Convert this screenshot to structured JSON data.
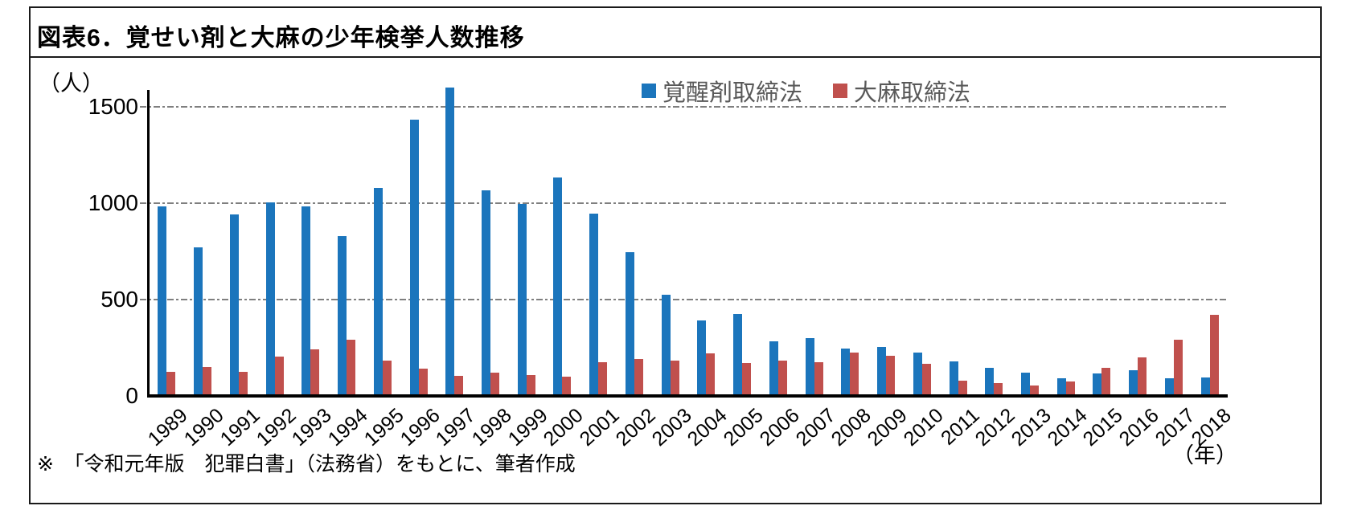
{
  "title": "図表6．覚せい剤と大麻の少年検挙人数推移",
  "y_axis_unit": "（人）",
  "x_axis_unit": "（年）",
  "footnote": "※　「令和元年版　犯罪白書」（法務省）をもとに、筆者作成",
  "colors": {
    "stimulant_blue": "#1b75bc",
    "cannabis_red": "#c0504d",
    "legend_text": "#595959",
    "gridline_gray": "#7f7f7f",
    "axis_black": "#000000"
  },
  "legend": [
    {
      "label": "覚醒剤取締法",
      "color": "#1b75bc"
    },
    {
      "label": "大麻取締法",
      "color": "#c0504d"
    }
  ],
  "chart_data": {
    "type": "bar",
    "title": "図表6．覚せい剤と大麻の少年検挙人数推移",
    "xlabel": "（年）",
    "ylabel": "（人）",
    "ylim": [
      0,
      1500
    ],
    "yticks": [
      0,
      500,
      1000,
      1500
    ],
    "grid": "horizontal dashed at 500/1000/1500",
    "legend_position": "top-center",
    "categories": [
      "1989",
      "1990",
      "1991",
      "1992",
      "1993",
      "1994",
      "1995",
      "1996",
      "1997",
      "1998",
      "1999",
      "2000",
      "2001",
      "2002",
      "2003",
      "2004",
      "2005",
      "2006",
      "2007",
      "2008",
      "2009",
      "2010",
      "2011",
      "2012",
      "2013",
      "2014",
      "2015",
      "2016",
      "2017",
      "2018"
    ],
    "series": [
      {
        "name": "覚醒剤取締法",
        "color": "#1b75bc",
        "values": [
          985,
          770,
          940,
          1005,
          985,
          830,
          1080,
          1435,
          1600,
          1065,
          995,
          1135,
          945,
          745,
          525,
          390,
          425,
          285,
          300,
          245,
          255,
          225,
          180,
          145,
          120,
          90,
          115,
          135,
          90,
          95
        ]
      },
      {
        "name": "大麻取締法",
        "color": "#c0504d",
        "values": [
          125,
          150,
          125,
          205,
          240,
          290,
          185,
          140,
          105,
          120,
          110,
          100,
          175,
          190,
          185,
          220,
          170,
          185,
          175,
          225,
          210,
          165,
          80,
          65,
          55,
          75,
          145,
          200,
          290,
          420
        ]
      }
    ]
  }
}
